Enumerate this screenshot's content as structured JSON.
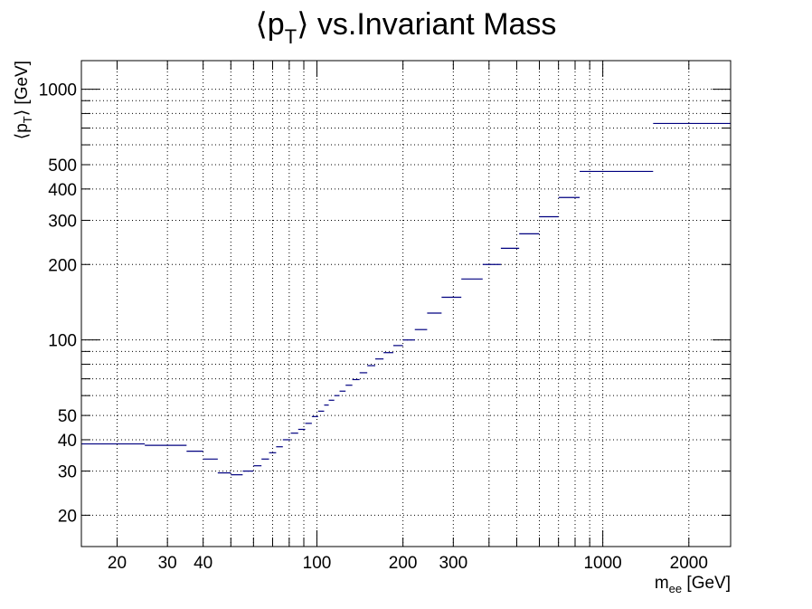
{
  "chart_data": {
    "type": "line",
    "title": {
      "main_open": "⟨p",
      "main_sub": "T",
      "main_close": "⟩ vs.Invariant Mass"
    },
    "xlabel": {
      "main": "m",
      "sub": "ee",
      "rest": " [GeV]"
    },
    "ylabel": {
      "main": "⟨p",
      "sub": "T",
      "rest": "⟩  [GeV]"
    },
    "x_scale": "log",
    "y_scale": "log",
    "xlim": [
      15,
      2800
    ],
    "ylim": [
      15,
      1300
    ],
    "grid": true,
    "x_tick_labels": [
      "20",
      "30",
      "40",
      "100",
      "200",
      "300",
      "1000",
      "2000"
    ],
    "x_tick_values": [
      20,
      30,
      40,
      100,
      200,
      300,
      1000,
      2000
    ],
    "y_tick_labels": [
      "20",
      "30",
      "40",
      "50",
      "100",
      "200",
      "300",
      "400",
      "500",
      "1000"
    ],
    "y_tick_values": [
      20,
      30,
      40,
      50,
      100,
      200,
      300,
      400,
      500,
      1000
    ],
    "series": [
      {
        "color": "#000080",
        "bins": [
          {
            "x_low": 15,
            "x_high": 25,
            "y": 38.5
          },
          {
            "x_low": 25,
            "x_high": 35,
            "y": 38.0
          },
          {
            "x_low": 35,
            "x_high": 40,
            "y": 36.0
          },
          {
            "x_low": 40,
            "x_high": 45,
            "y": 33.5
          },
          {
            "x_low": 45,
            "x_high": 50,
            "y": 29.5
          },
          {
            "x_low": 50,
            "x_high": 55,
            "y": 29.0
          },
          {
            "x_low": 55,
            "x_high": 60,
            "y": 30.0
          },
          {
            "x_low": 60,
            "x_high": 64,
            "y": 31.5
          },
          {
            "x_low": 64,
            "x_high": 68,
            "y": 33.5
          },
          {
            "x_low": 68,
            "x_high": 72,
            "y": 35.5
          },
          {
            "x_low": 72,
            "x_high": 76,
            "y": 37.5
          },
          {
            "x_low": 76,
            "x_high": 81,
            "y": 40.0
          },
          {
            "x_low": 81,
            "x_high": 86,
            "y": 42.5
          },
          {
            "x_low": 86,
            "x_high": 91,
            "y": 44.0
          },
          {
            "x_low": 91,
            "x_high": 96,
            "y": 46.5
          },
          {
            "x_low": 96,
            "x_high": 101,
            "y": 49.5
          },
          {
            "x_low": 101,
            "x_high": 106,
            "y": 52.0
          },
          {
            "x_low": 106,
            "x_high": 110,
            "y": 55.0
          },
          {
            "x_low": 110,
            "x_high": 115,
            "y": 57.5
          },
          {
            "x_low": 115,
            "x_high": 120,
            "y": 60.0
          },
          {
            "x_low": 120,
            "x_high": 126,
            "y": 62.5
          },
          {
            "x_low": 126,
            "x_high": 133,
            "y": 66.0
          },
          {
            "x_low": 133,
            "x_high": 141,
            "y": 69.5
          },
          {
            "x_low": 141,
            "x_high": 150,
            "y": 74.0
          },
          {
            "x_low": 150,
            "x_high": 160,
            "y": 79.0
          },
          {
            "x_low": 160,
            "x_high": 171,
            "y": 84.0
          },
          {
            "x_low": 171,
            "x_high": 185,
            "y": 89.0
          },
          {
            "x_low": 185,
            "x_high": 200,
            "y": 95.0
          },
          {
            "x_low": 200,
            "x_high": 220,
            "y": 100.0
          },
          {
            "x_low": 220,
            "x_high": 243,
            "y": 110.0
          },
          {
            "x_low": 243,
            "x_high": 273,
            "y": 128.0
          },
          {
            "x_low": 273,
            "x_high": 320,
            "y": 148.0
          },
          {
            "x_low": 320,
            "x_high": 380,
            "y": 175.0
          },
          {
            "x_low": 380,
            "x_high": 440,
            "y": 200.0
          },
          {
            "x_low": 440,
            "x_high": 510,
            "y": 232.0
          },
          {
            "x_low": 510,
            "x_high": 600,
            "y": 265.0
          },
          {
            "x_low": 600,
            "x_high": 700,
            "y": 310.0
          },
          {
            "x_low": 700,
            "x_high": 830,
            "y": 370.0
          },
          {
            "x_low": 830,
            "x_high": 1500,
            "y": 470.0
          },
          {
            "x_low": 1500,
            "x_high": 2800,
            "y": 730.0
          }
        ]
      }
    ]
  }
}
